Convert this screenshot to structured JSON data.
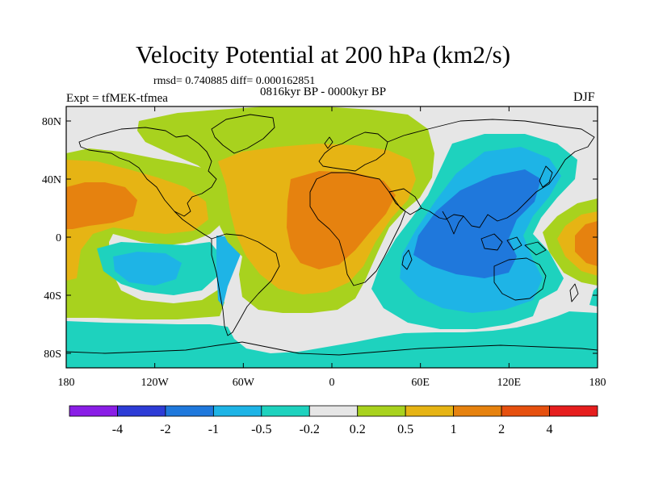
{
  "header": {
    "title": "Velocity Potential at 200 hPa (km2/s)",
    "stats": "rmsd= 0.740885 diff= 0.000162851",
    "experiment": "Expt = tfMEK-tfmea",
    "period": "0816kyr BP - 0000kyr BP",
    "season": "DJF"
  },
  "map_data": {
    "projection": "cylindrical-equidistant",
    "lon_range": [
      -180,
      180
    ],
    "lat_range": [
      -90,
      90
    ],
    "x_ticks": [
      {
        "lon": -180,
        "label": "180"
      },
      {
        "lon": -120,
        "label": "120W"
      },
      {
        "lon": -60,
        "label": "60W"
      },
      {
        "lon": 0,
        "label": "0"
      },
      {
        "lon": 60,
        "label": "60E"
      },
      {
        "lon": 120,
        "label": "120E"
      },
      {
        "lon": 180,
        "label": "180"
      }
    ],
    "y_ticks": [
      {
        "lat": 80,
        "label": "80N"
      },
      {
        "lat": 40,
        "label": "40N"
      },
      {
        "lat": 0,
        "label": "0"
      },
      {
        "lat": -40,
        "label": "40S"
      },
      {
        "lat": -80,
        "label": "80S"
      }
    ]
  },
  "colorbar": {
    "colors": [
      "#8a1ee6",
      "#2d3cd6",
      "#1f78dc",
      "#1eb4e6",
      "#1ed2be",
      "#e6e6e6",
      "#a8d21e",
      "#e6b414",
      "#e6820f",
      "#e6500f",
      "#e61e1e"
    ],
    "boundaries": [
      "-4",
      "-2",
      "-1",
      "-0.5",
      "-0.2",
      "0.2",
      "0.5",
      "1",
      "2",
      "4"
    ]
  },
  "colors": {
    "neutral": "#e6e6e6",
    "teal": "#1ed2be",
    "cyan": "#1eb4e6",
    "blue": "#1f78dc",
    "green": "#a8d21e",
    "yellow": "#e6b414",
    "orange": "#e6820f"
  }
}
